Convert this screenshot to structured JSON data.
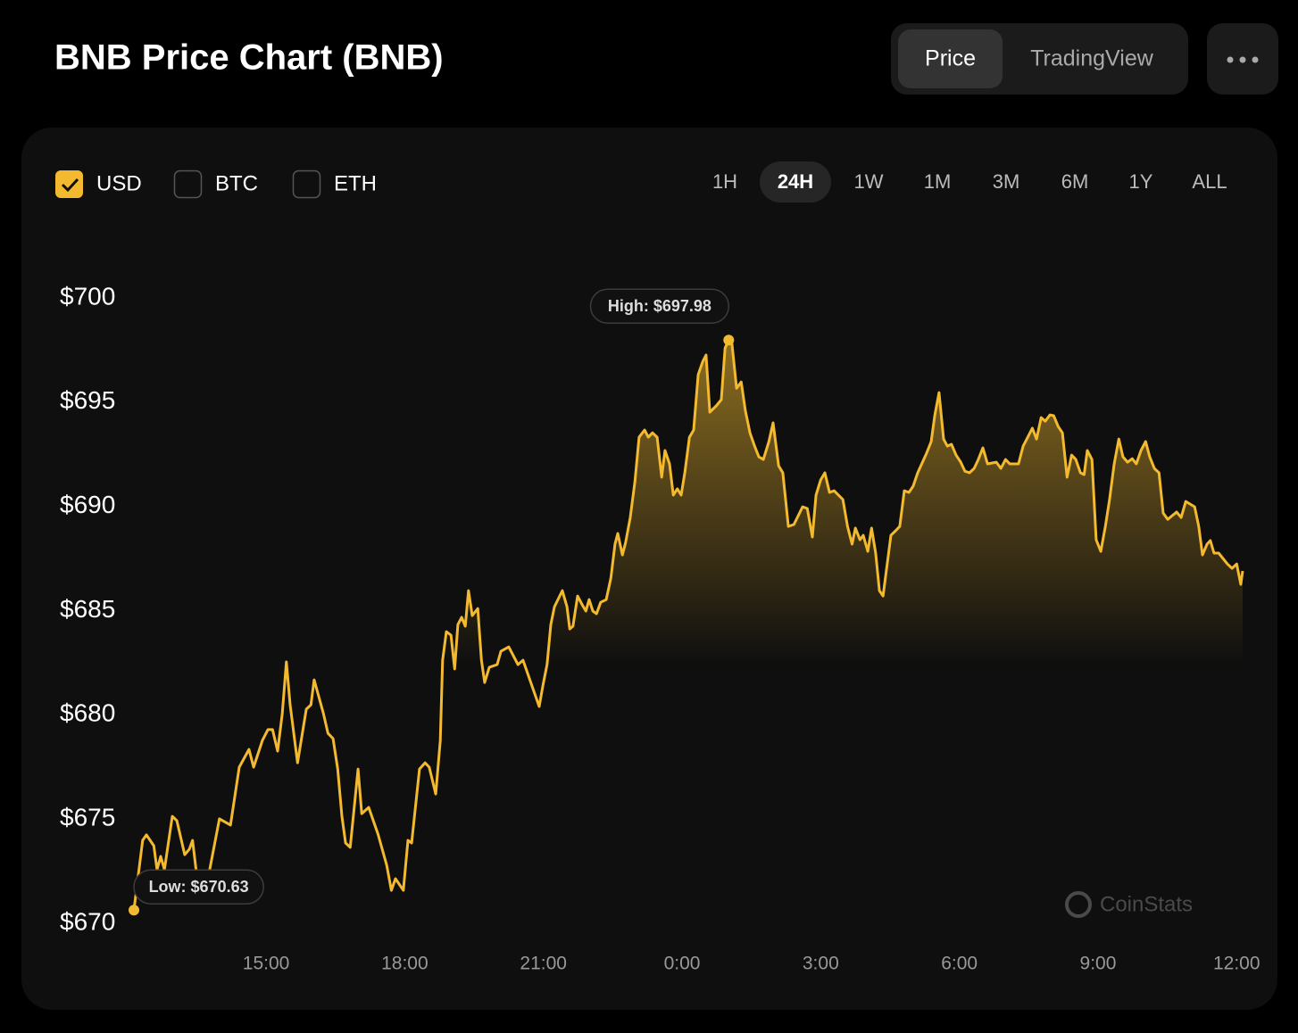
{
  "header": {
    "title": "BNB Price Chart (BNB)",
    "tabs": [
      "Price",
      "TradingView"
    ],
    "active_tab": "Price"
  },
  "controls": {
    "currencies": [
      {
        "label": "USD",
        "checked": true
      },
      {
        "label": "BTC",
        "checked": false
      },
      {
        "label": "ETH",
        "checked": false
      }
    ],
    "ranges": [
      "1H",
      "24H",
      "1W",
      "1M",
      "3M",
      "6M",
      "1Y",
      "ALL"
    ],
    "active_range": "24H"
  },
  "watermark": "CoinStats",
  "chart_data": {
    "type": "line",
    "color": "#f3ba2f",
    "high_label": "High: $697.98",
    "low_label": "Low: $670.63",
    "xlim": [
      12.14,
      36.13
    ],
    "ylim": [
      670,
      700
    ],
    "xticks": [
      {
        "value": 15,
        "label": "15:00"
      },
      {
        "value": 18,
        "label": "18:00"
      },
      {
        "value": 21,
        "label": "21:00"
      },
      {
        "value": 24,
        "label": "0:00"
      },
      {
        "value": 27,
        "label": "3:00"
      },
      {
        "value": 30,
        "label": "6:00"
      },
      {
        "value": 33,
        "label": "9:00"
      },
      {
        "value": 36,
        "label": "12:00"
      }
    ],
    "yticks": [
      {
        "value": 670,
        "label": "$670"
      },
      {
        "value": 675,
        "label": "$675"
      },
      {
        "value": 680,
        "label": "$680"
      },
      {
        "value": 685,
        "label": "$685"
      },
      {
        "value": 690,
        "label": "$690"
      },
      {
        "value": 695,
        "label": "$695"
      },
      {
        "value": 700,
        "label": "$700"
      }
    ],
    "x": [
      12.14,
      12.33,
      12.41,
      12.57,
      12.64,
      12.72,
      12.8,
      12.97,
      13.07,
      13.24,
      13.34,
      13.41,
      13.52,
      13.78,
      13.99,
      14.23,
      14.42,
      14.63,
      14.73,
      14.92,
      15.04,
      15.14,
      15.25,
      15.35,
      15.44,
      15.52,
      15.68,
      15.87,
      15.97,
      16.04,
      16.24,
      16.34,
      16.45,
      16.55,
      16.64,
      16.72,
      16.82,
      16.99,
      17.07,
      17.22,
      17.42,
      17.61,
      17.71,
      17.8,
      17.97,
      18.07,
      18.15,
      18.32,
      18.44,
      18.53,
      18.67,
      18.77,
      18.82,
      18.9,
      19.0,
      19.08,
      19.15,
      19.23,
      19.31,
      19.38,
      19.46,
      19.58,
      19.66,
      19.73,
      19.83,
      20.0,
      20.08,
      20.25,
      20.45,
      20.56,
      20.76,
      20.91,
      20.99,
      21.08,
      21.16,
      21.24,
      21.41,
      21.51,
      21.57,
      21.64,
      21.74,
      21.84,
      21.92,
      21.99,
      22.07,
      22.15,
      22.24,
      22.36,
      22.46,
      22.55,
      22.61,
      22.71,
      22.78,
      22.88,
      22.98,
      23.07,
      23.19,
      23.27,
      23.36,
      23.46,
      23.56,
      23.63,
      23.73,
      23.81,
      23.9,
      23.98,
      24.06,
      24.16,
      24.25,
      24.35,
      24.45,
      24.52,
      24.6,
      24.74,
      24.85,
      24.93,
      25.01,
      25.08,
      25.18,
      25.28,
      25.37,
      25.47,
      25.57,
      25.66,
      25.76,
      25.88,
      25.97,
      26.09,
      26.18,
      26.3,
      26.42,
      26.61,
      26.71,
      26.82,
      26.9,
      27.0,
      27.09,
      27.19,
      27.29,
      27.48,
      27.58,
      27.68,
      27.75,
      27.85,
      27.92,
      28.02,
      28.1,
      28.19,
      28.27,
      28.35,
      28.42,
      28.52,
      28.62,
      28.71,
      28.81,
      28.91,
      29.0,
      29.1,
      29.29,
      29.39,
      29.47,
      29.56,
      29.66,
      29.74,
      29.83,
      29.93,
      30.03,
      30.12,
      30.22,
      30.32,
      30.41,
      30.51,
      30.61,
      30.8,
      30.9,
      31.0,
      31.09,
      31.28,
      31.38,
      31.48,
      31.58,
      31.67,
      31.77,
      31.86,
      31.96,
      32.04,
      32.14,
      32.23,
      32.33,
      32.43,
      32.52,
      32.62,
      32.7,
      32.77,
      32.87,
      32.96,
      33.06,
      33.16,
      33.25,
      33.35,
      33.45,
      33.54,
      33.64,
      33.74,
      33.83,
      33.93,
      34.03,
      34.12,
      34.22,
      34.32,
      34.41,
      34.51,
      34.7,
      34.8,
      34.9,
      35.09,
      35.18,
      35.26,
      35.36,
      35.43,
      35.51,
      35.61,
      35.8,
      35.9,
      36.0,
      36.09,
      36.13
    ],
    "values": [
      670.63,
      673.98,
      674.24,
      673.72,
      672.57,
      673.21,
      672.57,
      675.13,
      674.92,
      673.29,
      673.55,
      673.98,
      671.93,
      672.57,
      675.01,
      674.71,
      677.49,
      678.34,
      677.49,
      678.77,
      679.29,
      679.29,
      678.26,
      680.06,
      682.54,
      680.48,
      677.7,
      680.27,
      680.48,
      681.68,
      680.06,
      679.11,
      678.86,
      677.4,
      675.13,
      673.85,
      673.64,
      677.4,
      675.26,
      675.56,
      674.28,
      672.78,
      671.58,
      672.14,
      671.58,
      673.98,
      673.85,
      677.4,
      677.7,
      677.49,
      676.2,
      678.77,
      682.62,
      683.99,
      683.82,
      682.2,
      684.33,
      684.68,
      684.25,
      685.96,
      684.76,
      685.1,
      682.62,
      681.55,
      682.28,
      682.41,
      683.05,
      683.26,
      682.41,
      682.62,
      681.34,
      680.4,
      681.42,
      682.41,
      684.33,
      685.19,
      685.96,
      685.19,
      684.12,
      684.25,
      685.7,
      685.28,
      684.98,
      685.53,
      684.98,
      684.85,
      685.4,
      685.53,
      686.56,
      688.19,
      688.7,
      687.67,
      688.27,
      689.47,
      691.18,
      693.32,
      693.66,
      693.32,
      693.53,
      693.32,
      691.4,
      692.68,
      692.04,
      690.54,
      690.84,
      690.54,
      691.61,
      693.32,
      693.66,
      696.32,
      696.96,
      697.26,
      694.52,
      694.82,
      695.12,
      697.6,
      697.98,
      697.81,
      695.67,
      695.97,
      694.6,
      693.53,
      692.89,
      692.38,
      692.25,
      693.11,
      694.01,
      691.95,
      691.61,
      689.04,
      689.13,
      689.98,
      689.9,
      688.53,
      690.54,
      691.27,
      691.61,
      690.67,
      690.75,
      690.33,
      689.04,
      688.19,
      688.96,
      688.4,
      688.61,
      687.84,
      688.96,
      687.76,
      685.96,
      685.7,
      686.9,
      688.61,
      688.83,
      689.04,
      690.75,
      690.67,
      690.97,
      691.61,
      692.55,
      693.11,
      694.39,
      695.46,
      693.23,
      692.89,
      692.98,
      692.46,
      692.12,
      691.69,
      691.61,
      691.82,
      692.25,
      692.81,
      692.04,
      692.12,
      691.82,
      692.25,
      692.04,
      692.04,
      692.89,
      693.32,
      693.75,
      693.23,
      694.26,
      694.09,
      694.39,
      694.35,
      693.83,
      693.53,
      691.4,
      692.46,
      692.25,
      691.61,
      691.52,
      692.68,
      692.25,
      688.4,
      687.84,
      689.04,
      690.33,
      692.04,
      693.23,
      692.38,
      692.12,
      692.29,
      692.04,
      692.68,
      693.11,
      692.38,
      691.82,
      691.61,
      689.68,
      689.38,
      689.73,
      689.47,
      690.24,
      689.98,
      689.04,
      687.67,
      688.19,
      688.36,
      687.76,
      687.76,
      687.24,
      687.03,
      687.24,
      686.26,
      686.9
    ]
  }
}
